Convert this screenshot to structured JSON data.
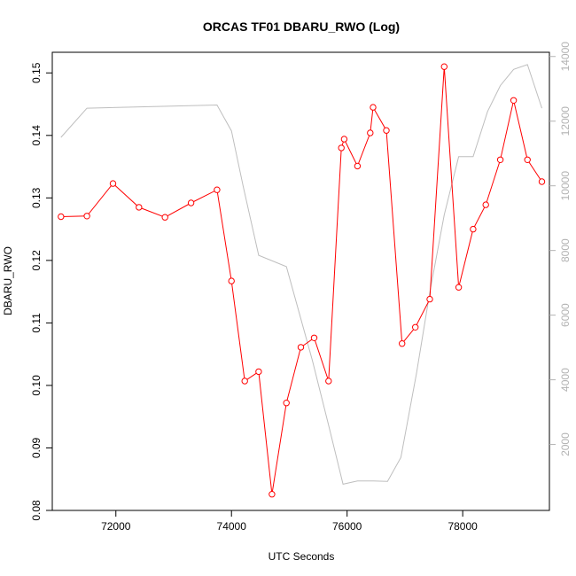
{
  "chart_data": {
    "type": "line",
    "title": "ORCAS TF01 DBARU_RWO (Log)",
    "xlabel": "UTC Seconds",
    "ylabel": "DBARU_RWO",
    "xlim": [
      70900,
      79500
    ],
    "ylim": [
      0.08,
      0.1533
    ],
    "y2lim": [
      -40,
      14130
    ],
    "x_ticks": [
      72000,
      74000,
      76000,
      78000
    ],
    "y_ticks": [
      0.08,
      0.09,
      0.1,
      0.11,
      0.12,
      0.13,
      0.14,
      0.15
    ],
    "y2_ticks": [
      2000,
      4000,
      6000,
      8000,
      10000,
      12000,
      14000
    ],
    "grid": false,
    "legend": "none",
    "series": [
      {
        "axis": "left",
        "color": "#ff0000",
        "markers": "open-circle",
        "x": [
          71050,
          71500,
          71950,
          72400,
          72850,
          73300,
          73750,
          74000,
          74230,
          74470,
          74700,
          74950,
          75200,
          75430,
          75680,
          75900,
          75950,
          76180,
          76400,
          76450,
          76680,
          76950,
          77180,
          77430,
          77680,
          77930,
          78180,
          78400,
          78650,
          78880,
          79120,
          79370
        ],
        "y": [
          0.127,
          0.1271,
          0.1323,
          0.1285,
          0.1269,
          0.1292,
          0.1313,
          0.1167,
          0.1007,
          0.1022,
          0.0826,
          0.0972,
          0.1061,
          0.1076,
          0.1007,
          0.138,
          0.1394,
          0.1351,
          0.1404,
          0.1445,
          0.1408,
          0.1067,
          0.1093,
          0.1138,
          0.151,
          0.1157,
          0.125,
          0.1289,
          0.1361,
          0.1456,
          0.1361,
          0.1326
        ]
      },
      {
        "axis": "right",
        "color": "#bebebe",
        "markers": "none",
        "x": [
          71050,
          71500,
          73750,
          74000,
          74200,
          74470,
          74950,
          75400,
          75680,
          75930,
          76180,
          76450,
          76700,
          76930,
          77200,
          77430,
          77680,
          77930,
          78180,
          78430,
          78650,
          78880,
          79120,
          79370
        ],
        "y": [
          11500,
          12400,
          12500,
          11700,
          10000,
          7850,
          7500,
          4600,
          2600,
          770,
          870,
          870,
          860,
          1600,
          4200,
          6700,
          9100,
          10900,
          10900,
          12300,
          13100,
          13600,
          13750,
          12400
        ]
      }
    ]
  }
}
